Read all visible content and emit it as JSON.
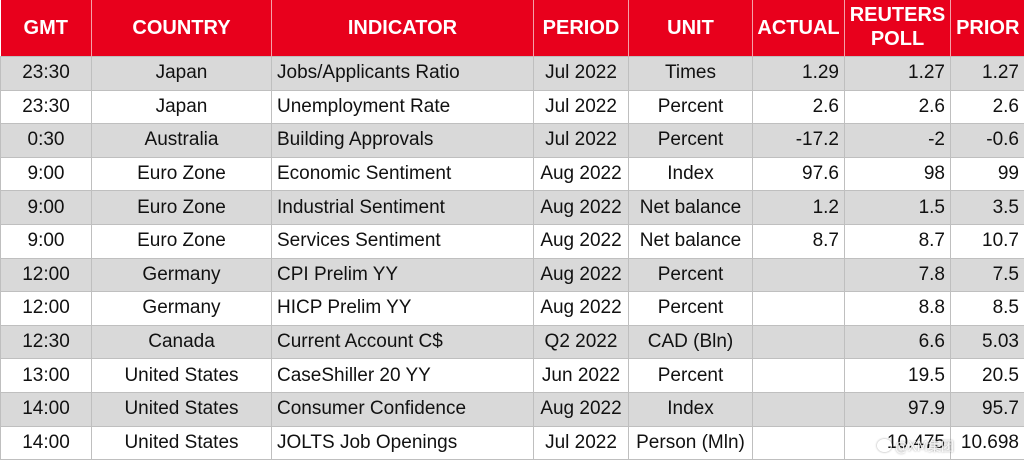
{
  "table": {
    "headers": {
      "gmt": "GMT",
      "country": "COUNTRY",
      "indicator": "INDICATOR",
      "period": "PERIOD",
      "unit": "UNIT",
      "actual": "ACTUAL",
      "poll_line1": "REUTERS",
      "poll_line2": "POLL",
      "prior": "PRIOR"
    },
    "rows": [
      {
        "gmt": "23:30",
        "country": "Japan",
        "indicator": "Jobs/Applicants Ratio",
        "period": "Jul 2022",
        "unit": "Times",
        "actual": "1.29",
        "poll": "1.27",
        "prior": "1.27"
      },
      {
        "gmt": "23:30",
        "country": "Japan",
        "indicator": "Unemployment Rate",
        "period": "Jul 2022",
        "unit": "Percent",
        "actual": "2.6",
        "poll": "2.6",
        "prior": "2.6"
      },
      {
        "gmt": "0:30",
        "country": "Australia",
        "indicator": "Building Approvals",
        "period": "Jul 2022",
        "unit": "Percent",
        "actual": "-17.2",
        "poll": "-2",
        "prior": "-0.6"
      },
      {
        "gmt": "9:00",
        "country": "Euro Zone",
        "indicator": "Economic Sentiment",
        "period": "Aug 2022",
        "unit": "Index",
        "actual": "97.6",
        "poll": "98",
        "prior": "99"
      },
      {
        "gmt": "9:00",
        "country": "Euro Zone",
        "indicator": "Industrial Sentiment",
        "period": "Aug 2022",
        "unit": "Net balance",
        "actual": "1.2",
        "poll": "1.5",
        "prior": "3.5"
      },
      {
        "gmt": "9:00",
        "country": "Euro Zone",
        "indicator": "Services Sentiment",
        "period": "Aug 2022",
        "unit": "Net balance",
        "actual": "8.7",
        "poll": "8.7",
        "prior": "10.7"
      },
      {
        "gmt": "12:00",
        "country": "Germany",
        "indicator": "CPI Prelim YY",
        "period": "Aug 2022",
        "unit": "Percent",
        "actual": "",
        "poll": "7.8",
        "prior": "7.5"
      },
      {
        "gmt": "12:00",
        "country": "Germany",
        "indicator": "HICP Prelim YY",
        "period": "Aug 2022",
        "unit": "Percent",
        "actual": "",
        "poll": "8.8",
        "prior": "8.5"
      },
      {
        "gmt": "12:30",
        "country": "Canada",
        "indicator": "Current Account C$",
        "period": "Q2 2022",
        "unit": "CAD (Bln)",
        "actual": "",
        "poll": "6.6",
        "prior": "5.03"
      },
      {
        "gmt": "13:00",
        "country": "United States",
        "indicator": "CaseShiller 20 YY",
        "period": "Jun 2022",
        "unit": "Percent",
        "actual": "",
        "poll": "19.5",
        "prior": "20.5"
      },
      {
        "gmt": "14:00",
        "country": "United States",
        "indicator": "Consumer Confidence",
        "period": "Aug 2022",
        "unit": "Index",
        "actual": "",
        "poll": "97.9",
        "prior": "95.7"
      },
      {
        "gmt": "14:00",
        "country": "United States",
        "indicator": "JOLTS Job Openings",
        "period": "Jul 2022",
        "unit": "Person (Mln)",
        "actual": "",
        "poll": "10.475",
        "prior": "10.698"
      }
    ]
  },
  "watermark": {
    "text": "@XM集团",
    "icon": "weibo-icon"
  },
  "colors": {
    "header_bg": "#e8001c",
    "header_text": "#ffffff",
    "row_shade": "#d9d9d9",
    "row_plain": "#ffffff"
  }
}
